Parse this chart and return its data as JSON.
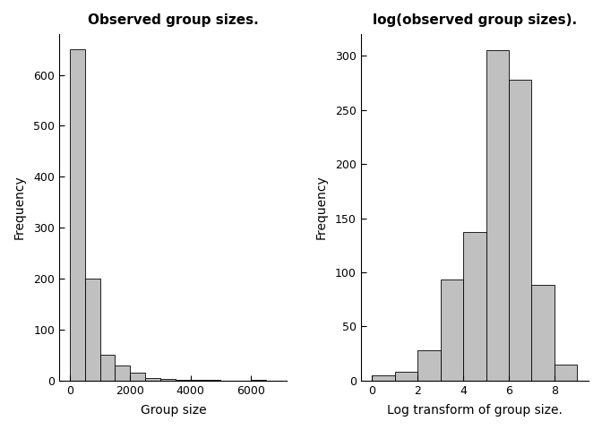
{
  "left_title": "Observed group sizes.",
  "right_title": "log(observed group sizes).",
  "left_xlabel": "Group size",
  "right_xlabel": "Log transform of group size.",
  "ylabel": "Frequency",
  "left_bar_edges": [
    0,
    500,
    1000,
    1500,
    2000,
    2500,
    3000,
    3500,
    4000,
    4500,
    5000,
    5500,
    6000,
    6500,
    7000
  ],
  "left_bar_heights": [
    650,
    200,
    50,
    30,
    15,
    5,
    3,
    2,
    1,
    1,
    0,
    0,
    1,
    0
  ],
  "right_bar_edges": [
    0,
    1,
    2,
    3,
    4,
    5,
    6,
    7,
    8,
    9
  ],
  "right_bar_heights": [
    5,
    8,
    28,
    93,
    137,
    305,
    278,
    88,
    15
  ],
  "bar_color": "#c0c0c0",
  "bar_edgecolor": "#000000",
  "left_xlim": [
    -350,
    7200
  ],
  "left_ylim": [
    0,
    680
  ],
  "left_yticks": [
    0,
    100,
    200,
    300,
    400,
    500,
    600
  ],
  "left_xticks": [
    0,
    2000,
    4000,
    6000
  ],
  "right_xlim": [
    -0.5,
    9.5
  ],
  "right_ylim": [
    0,
    320
  ],
  "right_yticks": [
    0,
    50,
    100,
    150,
    200,
    250,
    300
  ],
  "right_xticks": [
    0,
    2,
    4,
    6,
    8
  ],
  "title_fontsize": 11,
  "label_fontsize": 10,
  "tick_fontsize": 9,
  "bg_color": "#ffffff"
}
